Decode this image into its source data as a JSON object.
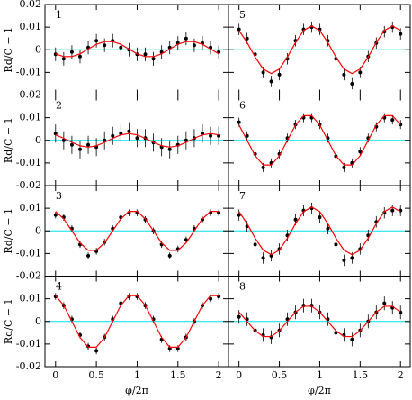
{
  "chart_data": [
    {
      "type": "scatter",
      "label": "1",
      "ylabel": "Rd/C − 1",
      "x": [
        0,
        0.1,
        0.2,
        0.3,
        0.4,
        0.5,
        0.6,
        0.7,
        0.8,
        0.9,
        1,
        1.1,
        1.2,
        1.3,
        1.4,
        1.5,
        1.6,
        1.7,
        1.8,
        1.9,
        2
      ],
      "series": [
        {
          "color": "#000000",
          "error": 0.003,
          "values": [
            -0.002,
            -0.004,
            -0.001,
            -0.003,
            0.001,
            0.004,
            0.002,
            0.004,
            0.001,
            0.0,
            -0.002,
            -0.002,
            -0.004,
            -0.001,
            0.001,
            0.003,
            0.005,
            0.002,
            0.003,
            0.001,
            -0.001
          ]
        },
        {
          "color": "#ff0000",
          "values": [
            -0.0018,
            -0.003,
            -0.003,
            -0.0018,
            0.0003,
            0.0024,
            0.0036,
            0.0036,
            0.0024,
            0.0003,
            -0.0018,
            -0.003,
            -0.003,
            -0.0018,
            0.0003,
            0.0024,
            0.0036,
            0.0036,
            0.0024,
            0.0003,
            -0.0018
          ]
        }
      ],
      "hline": 0,
      "hline_color": "#00e0e8",
      "xlim": [
        -0.13,
        2.12
      ],
      "ylim": [
        -0.02,
        0.02
      ],
      "xticks": [
        0,
        0.5,
        1,
        1.5,
        2
      ],
      "yticks": [
        -0.02,
        -0.01,
        0,
        0.01,
        0.02
      ],
      "ytick_labels": true,
      "xtick_labels": false
    },
    {
      "type": "scatter",
      "label": "2",
      "ylabel": "Rd/C − 1",
      "x": [
        0,
        0.1,
        0.2,
        0.3,
        0.4,
        0.5,
        0.6,
        0.7,
        0.8,
        0.9,
        1,
        1.1,
        1.2,
        1.3,
        1.4,
        1.5,
        1.6,
        1.7,
        1.8,
        1.9,
        2
      ],
      "series": [
        {
          "color": "#000000",
          "error": 0.004,
          "values": [
            0.003,
            0.0,
            -0.002,
            -0.004,
            -0.002,
            -0.003,
            0.0,
            0.002,
            0.003,
            0.004,
            0.001,
            0.001,
            -0.001,
            -0.003,
            -0.004,
            -0.002,
            0.0,
            0.001,
            0.003,
            0.002,
            0.002
          ]
        },
        {
          "color": "#ff0000",
          "values": [
            0.0024,
            0.0009,
            -0.0009,
            -0.0024,
            -0.003,
            -0.0024,
            -0.0009,
            0.0009,
            0.0024,
            0.003,
            0.0024,
            0.0009,
            -0.0009,
            -0.0024,
            -0.003,
            -0.0024,
            -0.0009,
            0.0009,
            0.0024,
            0.003,
            0.0024
          ]
        }
      ],
      "hline": 0,
      "hline_color": "#00e0e8",
      "xlim": [
        -0.13,
        2.12
      ],
      "ylim": [
        -0.02,
        0.02
      ],
      "xticks": [
        0,
        0.5,
        1,
        1.5,
        2
      ],
      "yticks": [
        -0.02,
        -0.01,
        0,
        0.01
      ],
      "ytick_labels": true,
      "xtick_labels": false
    },
    {
      "type": "scatter",
      "label": "3",
      "ylabel": "Rd/C − 1",
      "x": [
        0,
        0.1,
        0.2,
        0.3,
        0.4,
        0.5,
        0.6,
        0.7,
        0.8,
        0.9,
        1,
        1.1,
        1.2,
        1.3,
        1.4,
        1.5,
        1.6,
        1.7,
        1.8,
        1.9,
        2
      ],
      "series": [
        {
          "color": "#000000",
          "error": 0.0015,
          "values": [
            0.007,
            0.006,
            0.001,
            -0.006,
            -0.011,
            -0.009,
            -0.005,
            0.001,
            0.006,
            0.008,
            0.008,
            0.005,
            0.0,
            -0.006,
            -0.011,
            -0.008,
            -0.004,
            0.001,
            0.005,
            0.008,
            0.008
          ]
        },
        {
          "color": "#ff0000",
          "values": [
            0.0086,
            0.0053,
            0,
            -0.0053,
            -0.0086,
            -0.0086,
            -0.0053,
            0,
            0.0053,
            0.0086,
            0.0086,
            0.0053,
            0,
            -0.0053,
            -0.0086,
            -0.0086,
            -0.0053,
            0,
            0.0053,
            0.0086,
            0.0086
          ]
        }
      ],
      "hline": 0,
      "hline_color": "#00e0e8",
      "xlim": [
        -0.13,
        2.12
      ],
      "ylim": [
        -0.02,
        0.02
      ],
      "xticks": [
        0,
        0.5,
        1,
        1.5,
        2
      ],
      "yticks": [
        -0.02,
        -0.01,
        0,
        0.01
      ],
      "ytick_labels": true,
      "xtick_labels": false
    },
    {
      "type": "scatter",
      "label": "4",
      "ylabel": "Rd/C − 1",
      "xlabel": "φ/2π",
      "x": [
        0,
        0.1,
        0.2,
        0.3,
        0.4,
        0.5,
        0.6,
        0.7,
        0.8,
        0.9,
        1,
        1.1,
        1.2,
        1.3,
        1.4,
        1.5,
        1.6,
        1.7,
        1.8,
        1.9,
        2
      ],
      "series": [
        {
          "color": "#000000",
          "error": 0.0015,
          "values": [
            0.011,
            0.007,
            0.001,
            -0.006,
            -0.011,
            -0.013,
            -0.007,
            0.001,
            0.008,
            0.011,
            0.011,
            0.007,
            0.001,
            -0.008,
            -0.012,
            -0.012,
            -0.007,
            0.0,
            0.007,
            0.01,
            0.011
          ]
        },
        {
          "color": "#ff0000",
          "values": [
            0.0114,
            0.0071,
            0,
            -0.0071,
            -0.0114,
            -0.0114,
            -0.0071,
            0,
            0.0071,
            0.0114,
            0.0114,
            0.0071,
            0,
            -0.0071,
            -0.0114,
            -0.0114,
            -0.0071,
            0,
            0.0071,
            0.0114,
            0.0114
          ]
        }
      ],
      "hline": 0,
      "hline_color": "#00e0e8",
      "xlim": [
        -0.13,
        2.12
      ],
      "ylim": [
        -0.02,
        0.02
      ],
      "xticks": [
        0,
        0.5,
        1,
        1.5,
        2
      ],
      "yticks": [
        -0.02,
        -0.01,
        0,
        0.01
      ],
      "ytick_labels": true,
      "xtick_labels": true
    },
    {
      "type": "scatter",
      "label": "5",
      "x": [
        0,
        0.1,
        0.2,
        0.3,
        0.4,
        0.5,
        0.6,
        0.7,
        0.8,
        0.9,
        1,
        1.1,
        1.2,
        1.3,
        1.4,
        1.5,
        1.6,
        1.7,
        1.8,
        1.9,
        2
      ],
      "series": [
        {
          "color": "#000000",
          "error": 0.0025,
          "values": [
            0.009,
            0.005,
            -0.002,
            -0.01,
            -0.014,
            -0.011,
            -0.004,
            0.004,
            0.009,
            0.01,
            0.009,
            0.004,
            -0.004,
            -0.011,
            -0.015,
            -0.01,
            -0.003,
            0.003,
            0.008,
            0.01,
            0.007
          ]
        },
        {
          "color": "#ff0000",
          "values": [
            0.0085,
            0.0032,
            -0.0032,
            -0.0085,
            -0.0105,
            -0.0085,
            -0.0032,
            0.0032,
            0.0085,
            0.0105,
            0.0085,
            0.0032,
            -0.0032,
            -0.0085,
            -0.0105,
            -0.0085,
            -0.0032,
            0.0032,
            0.0085,
            0.0105,
            0.0085
          ]
        }
      ],
      "hline": 0,
      "hline_color": "#00e0e8",
      "xlim": [
        -0.13,
        2.12
      ],
      "ylim": [
        -0.02,
        0.02
      ],
      "xticks": [
        0,
        0.5,
        1,
        1.5,
        2
      ],
      "yticks": [
        -0.02,
        -0.01,
        0,
        0.01,
        0.02
      ],
      "ytick_labels": false,
      "xtick_labels": false
    },
    {
      "type": "scatter",
      "label": "6",
      "x": [
        0,
        0.1,
        0.2,
        0.3,
        0.4,
        0.5,
        0.6,
        0.7,
        0.8,
        0.9,
        1,
        1.1,
        1.2,
        1.3,
        1.4,
        1.5,
        1.6,
        1.7,
        1.8,
        1.9,
        2
      ],
      "series": [
        {
          "color": "#000000",
          "error": 0.002,
          "values": [
            0.008,
            0.002,
            -0.006,
            -0.012,
            -0.01,
            -0.006,
            0.001,
            0.007,
            0.01,
            0.01,
            0.007,
            0.001,
            -0.007,
            -0.012,
            -0.01,
            -0.005,
            0.001,
            0.006,
            0.01,
            0.009,
            0.007
          ]
        },
        {
          "color": "#ff0000",
          "values": [
            0.0068,
            0,
            -0.0068,
            -0.0109,
            -0.0109,
            -0.0068,
            0,
            0.0068,
            0.0109,
            0.0109,
            0.0068,
            0,
            -0.0068,
            -0.0109,
            -0.0109,
            -0.0068,
            0,
            0.0068,
            0.0109,
            0.0109,
            0.0068
          ]
        }
      ],
      "hline": 0,
      "hline_color": "#00e0e8",
      "xlim": [
        -0.13,
        2.12
      ],
      "ylim": [
        -0.02,
        0.02
      ],
      "xticks": [
        0,
        0.5,
        1,
        1.5,
        2
      ],
      "yticks": [
        -0.02,
        -0.01,
        0,
        0.01
      ],
      "ytick_labels": false,
      "xtick_labels": false
    },
    {
      "type": "scatter",
      "label": "7",
      "x": [
        0,
        0.1,
        0.2,
        0.3,
        0.4,
        0.5,
        0.6,
        0.7,
        0.8,
        0.9,
        1,
        1.1,
        1.2,
        1.3,
        1.4,
        1.5,
        1.6,
        1.7,
        1.8,
        1.9,
        2
      ],
      "series": [
        {
          "color": "#000000",
          "error": 0.0025,
          "values": [
            0.007,
            0.002,
            -0.006,
            -0.012,
            -0.011,
            -0.008,
            -0.002,
            0.005,
            0.009,
            0.01,
            0.006,
            0.001,
            -0.006,
            -0.013,
            -0.012,
            -0.008,
            -0.002,
            0.004,
            0.008,
            0.009,
            0.009
          ]
        },
        {
          "color": "#ff0000",
          "values": [
            0.0085,
            0.0032,
            -0.0032,
            -0.0085,
            -0.0105,
            -0.0085,
            -0.0032,
            0.0032,
            0.0085,
            0.0105,
            0.0085,
            0.0032,
            -0.0032,
            -0.0085,
            -0.0105,
            -0.0085,
            -0.0032,
            0.0032,
            0.0085,
            0.0105,
            0.0085
          ]
        }
      ],
      "hline": 0,
      "hline_color": "#00e0e8",
      "xlim": [
        -0.13,
        2.12
      ],
      "ylim": [
        -0.02,
        0.02
      ],
      "xticks": [
        0,
        0.5,
        1,
        1.5,
        2
      ],
      "yticks": [
        -0.02,
        -0.01,
        0,
        0.01
      ],
      "ytick_labels": false,
      "xtick_labels": false
    },
    {
      "type": "scatter",
      "label": "8",
      "xlabel": "φ/2π",
      "x": [
        0,
        0.1,
        0.2,
        0.3,
        0.4,
        0.5,
        0.6,
        0.7,
        0.8,
        0.9,
        1,
        1.1,
        1.2,
        1.3,
        1.4,
        1.5,
        1.6,
        1.7,
        1.8,
        1.9,
        2
      ],
      "series": [
        {
          "color": "#000000",
          "error": 0.003,
          "values": [
            0.002,
            0.001,
            -0.004,
            -0.006,
            -0.007,
            -0.004,
            0.001,
            0.004,
            0.007,
            0.007,
            0.004,
            0.001,
            -0.005,
            -0.006,
            -0.008,
            -0.004,
            0.0,
            0.004,
            0.008,
            0.006,
            0.004
          ]
        },
        {
          "color": "#ff0000",
          "values": [
            0.0041,
            0,
            -0.0041,
            -0.0067,
            -0.0067,
            -0.0041,
            0,
            0.0041,
            0.0067,
            0.0067,
            0.0041,
            0,
            -0.0041,
            -0.0067,
            -0.0067,
            -0.0041,
            0,
            0.0041,
            0.0067,
            0.0067,
            0.0041
          ]
        }
      ],
      "hline": 0,
      "hline_color": "#00e0e8",
      "xlim": [
        -0.13,
        2.12
      ],
      "ylim": [
        -0.02,
        0.02
      ],
      "xticks": [
        0,
        0.5,
        1,
        1.5,
        2
      ],
      "yticks": [
        -0.02,
        -0.01,
        0,
        0.01
      ],
      "ytick_labels": false,
      "xtick_labels": true
    }
  ]
}
